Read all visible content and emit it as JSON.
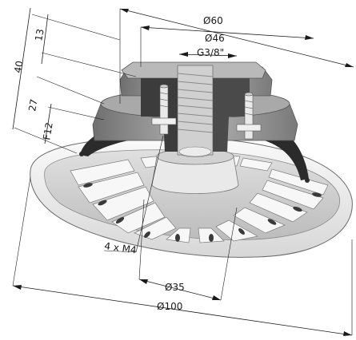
{
  "dimensions": {
    "d60": "Ø60",
    "d46": "Ø46",
    "thread": "G3/8\"",
    "h13": "13",
    "h40": "40",
    "h27": "27",
    "f12": "F12",
    "bolts": "4 x M4",
    "d35": "Ø35",
    "d100": "Ø100"
  },
  "colors": {
    "body_gray": "#8e8e8e",
    "body_light": "#bdbdbd",
    "rubber_dark": "#2b2b2b",
    "cup_white": "#f2f2f2",
    "line": "#1a1a1a"
  }
}
